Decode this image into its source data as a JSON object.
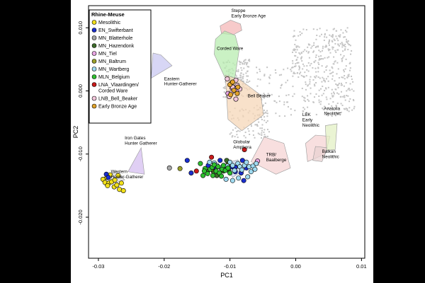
{
  "chart_data": {
    "type": "scatter",
    "title": "",
    "xlabel": "PC1",
    "ylabel": "PC2",
    "xlim": [
      -0.0315,
      0.0105
    ],
    "ylim": [
      -0.0265,
      0.0135
    ],
    "xticks": [
      -0.03,
      -0.02,
      -0.01,
      0.0,
      0.01
    ],
    "xtick_labels": [
      "-0.03",
      "-0.02",
      "-0.01",
      "0.00",
      "0.01"
    ],
    "yticks": [
      -0.02,
      -0.01,
      0.0,
      0.01
    ],
    "ytick_labels": [
      "-0.020",
      "-0.010",
      "0.000",
      "0.010"
    ],
    "grid": false,
    "legend": {
      "title": "Rhine-Meuse",
      "position": "top-left",
      "entries": [
        {
          "label": "Mesolithic",
          "color": "#f2e01b"
        },
        {
          "label": "EN_Swifterbant",
          "color": "#1a2ecc"
        },
        {
          "label": "MN_Blatterhole",
          "color": "#a8a8a8"
        },
        {
          "label": "MN_Hazendonk",
          "color": "#3d6b2a"
        },
        {
          "label": "MN_Tiel",
          "color": "#e8a6e3"
        },
        {
          "label": "MN_Baltrum",
          "color": "#9a9f2a"
        },
        {
          "label": "MN_Wartberg",
          "color": "#9fdaf0"
        },
        {
          "label": "MLN_Belgium",
          "color": "#2fbf2f"
        },
        {
          "label": "LNA_Vlaardingen/\nCorded Ware",
          "color": "#c81a1a"
        },
        {
          "label": "LNB_Bell_Beaker",
          "color": "#f2c6da"
        },
        {
          "label": "Early Bronze Age",
          "color": "#e0a32a"
        }
      ]
    },
    "reference_groups": [
      {
        "label": "Steppe\nEarly Bronze Age",
        "color": "#f4b8b8",
        "hull": [
          [
            -0.0115,
            0.0103
          ],
          [
            -0.0099,
            0.0112
          ],
          [
            -0.0084,
            0.0106
          ],
          [
            -0.0082,
            0.0096
          ],
          [
            -0.0095,
            0.0089
          ],
          [
            -0.0113,
            0.0091
          ]
        ]
      },
      {
        "label": "Corded Ware",
        "color": "#b8ecb0",
        "hull": [
          [
            -0.0122,
            0.0082
          ],
          [
            -0.0108,
            0.0095
          ],
          [
            -0.0092,
            0.0088
          ],
          [
            -0.0086,
            0.0065
          ],
          [
            -0.0094,
            0.001
          ],
          [
            -0.0108,
            0.0022
          ],
          [
            -0.0124,
            0.0058
          ]
        ]
      },
      {
        "label": "Bell Beaker",
        "color": "#f6d7b8",
        "hull": [
          [
            -0.0107,
            0.0025
          ],
          [
            -0.0085,
            0.0018
          ],
          [
            -0.0053,
            -0.0007
          ],
          [
            -0.0049,
            -0.0038
          ],
          [
            -0.0082,
            -0.0063
          ],
          [
            -0.0103,
            -0.0045
          ]
        ]
      },
      {
        "label": "Eastern\nHunter-Gatherer",
        "color": "#c9c8f2",
        "hull": [
          [
            -0.0217,
            0.006
          ],
          [
            -0.0205,
            0.0057
          ],
          [
            -0.0188,
            0.004
          ],
          [
            -0.022,
            0.002
          ]
        ]
      },
      {
        "label": "Iron Gates\nHunter Gatherer",
        "color": "#d5bff0",
        "hull": [
          [
            -0.0235,
            -0.009
          ],
          [
            -0.023,
            -0.0132
          ],
          [
            -0.0255,
            -0.0128
          ]
        ]
      },
      {
        "label": "Western\nHunter-Gatherer",
        "color": "#d9d9d9",
        "hull": [
          [
            -0.0292,
            -0.0137
          ],
          [
            -0.0272,
            -0.0128
          ],
          [
            -0.026,
            -0.0141
          ],
          [
            -0.029,
            -0.015
          ]
        ]
      },
      {
        "label": "Globular\nAmphora",
        "color": "#c9d7f0",
        "hull": [
          [
            -0.0108,
            -0.0115
          ],
          [
            -0.0088,
            -0.0109
          ],
          [
            -0.0079,
            -0.0125
          ],
          [
            -0.0096,
            -0.0137
          ]
        ]
      },
      {
        "label": "TRB/\nBaalberge",
        "color": "#f5d4d4",
        "hull": [
          [
            -0.0048,
            -0.0073
          ],
          [
            -0.0018,
            -0.0083
          ],
          [
            -0.0008,
            -0.0122
          ],
          [
            -0.003,
            -0.0132
          ],
          [
            -0.0068,
            -0.0112
          ]
        ]
      },
      {
        "label": "LBK\nEarly\nNeolithic",
        "color": "#f5d4d4",
        "hull": [
          [
            0.0015,
            -0.0083
          ],
          [
            0.003,
            -0.007
          ],
          [
            0.0052,
            -0.0072
          ],
          [
            0.0045,
            -0.01
          ],
          [
            0.0018,
            -0.0112
          ]
        ]
      },
      {
        "label": "Balkan\nNeolithic",
        "color": "#ead2d2",
        "hull": [
          [
            0.003,
            -0.0088
          ],
          [
            0.0048,
            -0.009
          ],
          [
            0.004,
            -0.0112
          ],
          [
            0.0026,
            -0.011
          ]
        ]
      },
      {
        "label": "Anatolia\nNeolithic",
        "color": "#e3f0c4",
        "hull": [
          [
            0.0045,
            -0.0055
          ],
          [
            0.0063,
            -0.0052
          ],
          [
            0.006,
            -0.0093
          ],
          [
            0.0047,
            -0.0094
          ]
        ]
      }
    ],
    "series": [
      {
        "name": "Mesolithic",
        "color": "#f2e01b",
        "points": [
          [
            -0.0293,
            -0.014
          ],
          [
            -0.029,
            -0.0145
          ],
          [
            -0.0287,
            -0.0137
          ],
          [
            -0.0284,
            -0.0146
          ],
          [
            -0.028,
            -0.0144
          ],
          [
            -0.0276,
            -0.0152
          ],
          [
            -0.0272,
            -0.0149
          ],
          [
            -0.0268,
            -0.0156
          ],
          [
            -0.0275,
            -0.0141
          ],
          [
            -0.0265,
            -0.0146
          ],
          [
            -0.0262,
            -0.0158
          ],
          [
            -0.0282,
            -0.0133
          ],
          [
            -0.027,
            -0.0134
          ],
          [
            -0.0286,
            -0.015
          ]
        ]
      },
      {
        "name": "EN_Swifterbant",
        "color": "#1a2ecc",
        "points": [
          [
            -0.0288,
            -0.0132
          ],
          [
            -0.0285,
            -0.0137
          ],
          [
            -0.0165,
            -0.011
          ],
          [
            -0.0159,
            -0.013
          ],
          [
            -0.0133,
            -0.0118
          ],
          [
            -0.0125,
            -0.0121
          ],
          [
            -0.0115,
            -0.011
          ],
          [
            -0.0097,
            -0.012
          ],
          [
            -0.0092,
            -0.0121
          ],
          [
            -0.0081,
            -0.011
          ],
          [
            -0.0083,
            -0.013
          ],
          [
            -0.0075,
            -0.0122
          ],
          [
            -0.0079,
            -0.0142
          ],
          [
            -0.0092,
            -0.0128
          ]
        ]
      },
      {
        "name": "MN_Blatterhole",
        "color": "#a8a8a8",
        "points": [
          [
            -0.0192,
            -0.0122
          ]
        ]
      },
      {
        "name": "MN_Hazendonk",
        "color": "#3d6b2a",
        "points": [
          [
            -0.0134,
            -0.0127
          ],
          [
            -0.0125,
            -0.0128
          ],
          [
            -0.011,
            -0.0127
          ],
          [
            -0.0102,
            -0.0126
          ],
          [
            -0.0105,
            -0.011
          ],
          [
            -0.012,
            -0.0134
          ]
        ]
      },
      {
        "name": "MN_Tiel",
        "color": "#e8a6e3",
        "points": [
          [
            -0.0058,
            -0.0111
          ],
          [
            -0.0097,
            0.0005
          ],
          [
            -0.0093,
            0.0004
          ],
          [
            -0.009,
            0.0
          ],
          [
            -0.0103,
            -0.0004
          ]
        ]
      },
      {
        "name": "MN_Baltrum",
        "color": "#9a9f2a",
        "points": [
          [
            -0.0176,
            -0.0123
          ],
          [
            -0.0128,
            -0.0124
          ],
          [
            -0.0103,
            -0.0117
          ]
        ]
      },
      {
        "name": "MN_Wartberg",
        "color": "#9fdaf0",
        "points": [
          [
            -0.0131,
            -0.0113
          ],
          [
            -0.0124,
            -0.0114
          ],
          [
            -0.012,
            -0.0118
          ],
          [
            -0.0114,
            -0.0122
          ],
          [
            -0.0108,
            -0.0125
          ],
          [
            -0.0104,
            -0.0119
          ],
          [
            -0.01,
            -0.0113
          ],
          [
            -0.0096,
            -0.0118
          ],
          [
            -0.0093,
            -0.0126
          ],
          [
            -0.0088,
            -0.0115
          ],
          [
            -0.0085,
            -0.012
          ],
          [
            -0.0082,
            -0.0125
          ],
          [
            -0.0078,
            -0.0118
          ],
          [
            -0.0075,
            -0.0113
          ],
          [
            -0.0071,
            -0.012
          ],
          [
            -0.0068,
            -0.0128
          ],
          [
            -0.0065,
            -0.0119
          ],
          [
            -0.0062,
            -0.0124
          ],
          [
            -0.006,
            -0.0115
          ],
          [
            -0.0106,
            -0.014
          ],
          [
            -0.0096,
            -0.0142
          ],
          [
            -0.0087,
            -0.0138
          ],
          [
            -0.0073,
            -0.0136
          ]
        ]
      },
      {
        "name": "MLN_Belgium",
        "color": "#2fbf2f",
        "points": [
          [
            -0.0145,
            -0.0115
          ],
          [
            -0.0138,
            -0.0123
          ],
          [
            -0.0134,
            -0.0131
          ],
          [
            -0.013,
            -0.0124
          ],
          [
            -0.0127,
            -0.0121
          ],
          [
            -0.0124,
            -0.0117
          ],
          [
            -0.0121,
            -0.0127
          ],
          [
            -0.0118,
            -0.012
          ],
          [
            -0.0116,
            -0.013
          ],
          [
            -0.0112,
            -0.0124
          ],
          [
            -0.011,
            -0.0118
          ],
          [
            -0.0107,
            -0.0126
          ],
          [
            -0.0103,
            -0.0122
          ],
          [
            -0.01,
            -0.013
          ],
          [
            -0.0141,
            -0.0134
          ],
          [
            -0.0126,
            -0.0134
          ],
          [
            -0.0113,
            -0.0135
          ],
          [
            -0.0139,
            -0.0127
          ]
        ]
      },
      {
        "name": "LNA_Vlaardingen/\nCorded Ware",
        "color": "#c81a1a",
        "points": [
          [
            -0.0151,
            -0.0127
          ],
          [
            -0.0128,
            -0.0105
          ],
          [
            -0.0078,
            -0.0093
          ]
        ]
      },
      {
        "name": "LNB_Bell_Beaker",
        "color": "#f2c6da",
        "points": [
          [
            -0.0104,
            0.0019
          ],
          [
            -0.0097,
            0.0013
          ],
          [
            -0.0091,
            0.0017
          ],
          [
            -0.0096,
            0.0006
          ],
          [
            -0.0089,
            0.0009
          ],
          [
            -0.0101,
            -0.0009
          ],
          [
            -0.0091,
            -0.0013
          ],
          [
            -0.0098,
            -0.0003
          ],
          [
            -0.0085,
            0.0003
          ]
        ]
      },
      {
        "name": "Early Bronze Age",
        "color": "#e0a32a",
        "points": [
          [
            -0.01,
            0.001
          ],
          [
            -0.0094,
            0.0001
          ],
          [
            -0.0099,
            -0.0006
          ],
          [
            -0.0088,
            0.0006
          ],
          [
            -0.0089,
            -0.0004
          ],
          [
            -0.0096,
            0.0014
          ]
        ]
      }
    ]
  }
}
